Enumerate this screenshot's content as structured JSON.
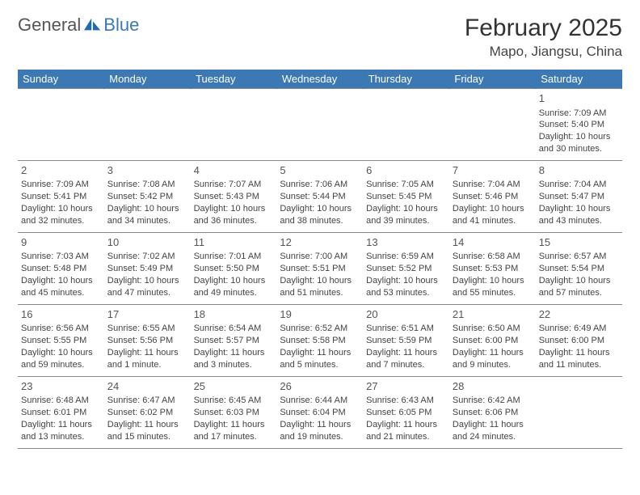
{
  "brand": {
    "general": "General",
    "blue": "Blue",
    "icon_fill": "#1f6bb5"
  },
  "header": {
    "title": "February 2025",
    "location": "Mapo, Jiangsu, China",
    "title_fontsize": 30,
    "location_fontsize": 17
  },
  "colors": {
    "header_bg": "#3c78b4",
    "header_text": "#ffffff",
    "cell_border": "#888888",
    "text": "#444444",
    "background": "#ffffff"
  },
  "weekday_labels": [
    "Sunday",
    "Monday",
    "Tuesday",
    "Wednesday",
    "Thursday",
    "Friday",
    "Saturday"
  ],
  "weeks": [
    [
      null,
      null,
      null,
      null,
      null,
      null,
      {
        "d": "1",
        "sr": "Sunrise: 7:09 AM",
        "ss": "Sunset: 5:40 PM",
        "dl": "Daylight: 10 hours and 30 minutes."
      }
    ],
    [
      {
        "d": "2",
        "sr": "Sunrise: 7:09 AM",
        "ss": "Sunset: 5:41 PM",
        "dl": "Daylight: 10 hours and 32 minutes."
      },
      {
        "d": "3",
        "sr": "Sunrise: 7:08 AM",
        "ss": "Sunset: 5:42 PM",
        "dl": "Daylight: 10 hours and 34 minutes."
      },
      {
        "d": "4",
        "sr": "Sunrise: 7:07 AM",
        "ss": "Sunset: 5:43 PM",
        "dl": "Daylight: 10 hours and 36 minutes."
      },
      {
        "d": "5",
        "sr": "Sunrise: 7:06 AM",
        "ss": "Sunset: 5:44 PM",
        "dl": "Daylight: 10 hours and 38 minutes."
      },
      {
        "d": "6",
        "sr": "Sunrise: 7:05 AM",
        "ss": "Sunset: 5:45 PM",
        "dl": "Daylight: 10 hours and 39 minutes."
      },
      {
        "d": "7",
        "sr": "Sunrise: 7:04 AM",
        "ss": "Sunset: 5:46 PM",
        "dl": "Daylight: 10 hours and 41 minutes."
      },
      {
        "d": "8",
        "sr": "Sunrise: 7:04 AM",
        "ss": "Sunset: 5:47 PM",
        "dl": "Daylight: 10 hours and 43 minutes."
      }
    ],
    [
      {
        "d": "9",
        "sr": "Sunrise: 7:03 AM",
        "ss": "Sunset: 5:48 PM",
        "dl": "Daylight: 10 hours and 45 minutes."
      },
      {
        "d": "10",
        "sr": "Sunrise: 7:02 AM",
        "ss": "Sunset: 5:49 PM",
        "dl": "Daylight: 10 hours and 47 minutes."
      },
      {
        "d": "11",
        "sr": "Sunrise: 7:01 AM",
        "ss": "Sunset: 5:50 PM",
        "dl": "Daylight: 10 hours and 49 minutes."
      },
      {
        "d": "12",
        "sr": "Sunrise: 7:00 AM",
        "ss": "Sunset: 5:51 PM",
        "dl": "Daylight: 10 hours and 51 minutes."
      },
      {
        "d": "13",
        "sr": "Sunrise: 6:59 AM",
        "ss": "Sunset: 5:52 PM",
        "dl": "Daylight: 10 hours and 53 minutes."
      },
      {
        "d": "14",
        "sr": "Sunrise: 6:58 AM",
        "ss": "Sunset: 5:53 PM",
        "dl": "Daylight: 10 hours and 55 minutes."
      },
      {
        "d": "15",
        "sr": "Sunrise: 6:57 AM",
        "ss": "Sunset: 5:54 PM",
        "dl": "Daylight: 10 hours and 57 minutes."
      }
    ],
    [
      {
        "d": "16",
        "sr": "Sunrise: 6:56 AM",
        "ss": "Sunset: 5:55 PM",
        "dl": "Daylight: 10 hours and 59 minutes."
      },
      {
        "d": "17",
        "sr": "Sunrise: 6:55 AM",
        "ss": "Sunset: 5:56 PM",
        "dl": "Daylight: 11 hours and 1 minute."
      },
      {
        "d": "18",
        "sr": "Sunrise: 6:54 AM",
        "ss": "Sunset: 5:57 PM",
        "dl": "Daylight: 11 hours and 3 minutes."
      },
      {
        "d": "19",
        "sr": "Sunrise: 6:52 AM",
        "ss": "Sunset: 5:58 PM",
        "dl": "Daylight: 11 hours and 5 minutes."
      },
      {
        "d": "20",
        "sr": "Sunrise: 6:51 AM",
        "ss": "Sunset: 5:59 PM",
        "dl": "Daylight: 11 hours and 7 minutes."
      },
      {
        "d": "21",
        "sr": "Sunrise: 6:50 AM",
        "ss": "Sunset: 6:00 PM",
        "dl": "Daylight: 11 hours and 9 minutes."
      },
      {
        "d": "22",
        "sr": "Sunrise: 6:49 AM",
        "ss": "Sunset: 6:00 PM",
        "dl": "Daylight: 11 hours and 11 minutes."
      }
    ],
    [
      {
        "d": "23",
        "sr": "Sunrise: 6:48 AM",
        "ss": "Sunset: 6:01 PM",
        "dl": "Daylight: 11 hours and 13 minutes."
      },
      {
        "d": "24",
        "sr": "Sunrise: 6:47 AM",
        "ss": "Sunset: 6:02 PM",
        "dl": "Daylight: 11 hours and 15 minutes."
      },
      {
        "d": "25",
        "sr": "Sunrise: 6:45 AM",
        "ss": "Sunset: 6:03 PM",
        "dl": "Daylight: 11 hours and 17 minutes."
      },
      {
        "d": "26",
        "sr": "Sunrise: 6:44 AM",
        "ss": "Sunset: 6:04 PM",
        "dl": "Daylight: 11 hours and 19 minutes."
      },
      {
        "d": "27",
        "sr": "Sunrise: 6:43 AM",
        "ss": "Sunset: 6:05 PM",
        "dl": "Daylight: 11 hours and 21 minutes."
      },
      {
        "d": "28",
        "sr": "Sunrise: 6:42 AM",
        "ss": "Sunset: 6:06 PM",
        "dl": "Daylight: 11 hours and 24 minutes."
      },
      null
    ]
  ]
}
